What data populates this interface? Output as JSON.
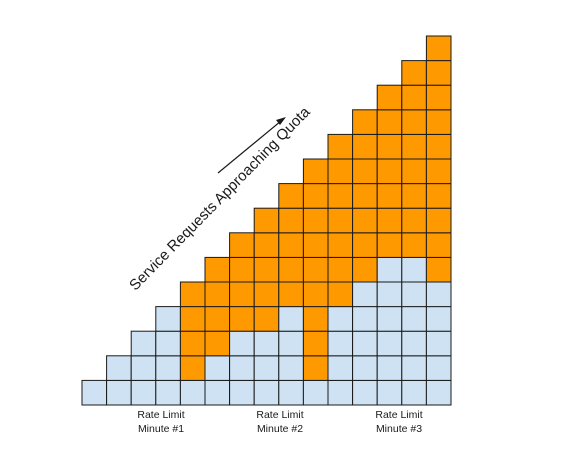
{
  "colors": {
    "quota_used": "#ff9900",
    "below_quota": "#cfe2f3",
    "grid_line": "#1a1a1a"
  },
  "annotation": {
    "label": "Service Requests Approaching Quota",
    "arrow_icon": "arrow-up-right-icon"
  },
  "minutes": [
    {
      "line1": "Rate Limit",
      "line2": "Minute #1"
    },
    {
      "line1": "Rate Limit",
      "line2": "Minute #2"
    },
    {
      "line1": "Rate Limit",
      "line2": "Minute #3"
    }
  ],
  "columns": [
    {
      "total": 1,
      "orange_from_top": 0
    },
    {
      "total": 2,
      "orange_from_top": 0
    },
    {
      "total": 3,
      "orange_from_top": 0
    },
    {
      "total": 4,
      "orange_from_top": 0
    },
    {
      "total": 5,
      "orange_from_top": 4
    },
    {
      "total": 6,
      "orange_from_top": 4
    },
    {
      "total": 7,
      "orange_from_top": 4
    },
    {
      "total": 8,
      "orange_from_top": 5
    },
    {
      "total": 9,
      "orange_from_top": 5
    },
    {
      "total": 10,
      "orange_from_top": 9
    },
    {
      "total": 11,
      "orange_from_top": 7
    },
    {
      "total": 12,
      "orange_from_top": 7
    },
    {
      "total": 13,
      "orange_from_top": 7
    },
    {
      "total": 14,
      "orange_from_top": 8
    },
    {
      "total": 15,
      "orange_from_top": 10
    }
  ]
}
